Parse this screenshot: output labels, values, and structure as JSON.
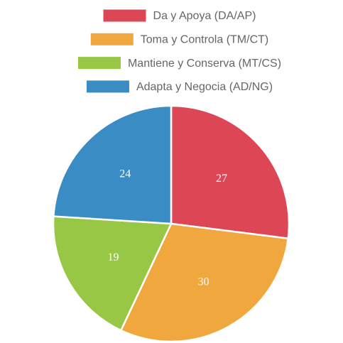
{
  "chart_data": {
    "type": "pie",
    "categories": [
      "Da y Apoya (DA/AP)",
      "Toma y Controla (TM/CT)",
      "Mantiene y Conserva (MT/CS)",
      "Adapta y Negocia (AD/NG)"
    ],
    "values": [
      27,
      30,
      19,
      24
    ],
    "colors": [
      "#dc4655",
      "#f0a83e",
      "#98c645",
      "#3a8cc4"
    ],
    "legend": "top"
  }
}
